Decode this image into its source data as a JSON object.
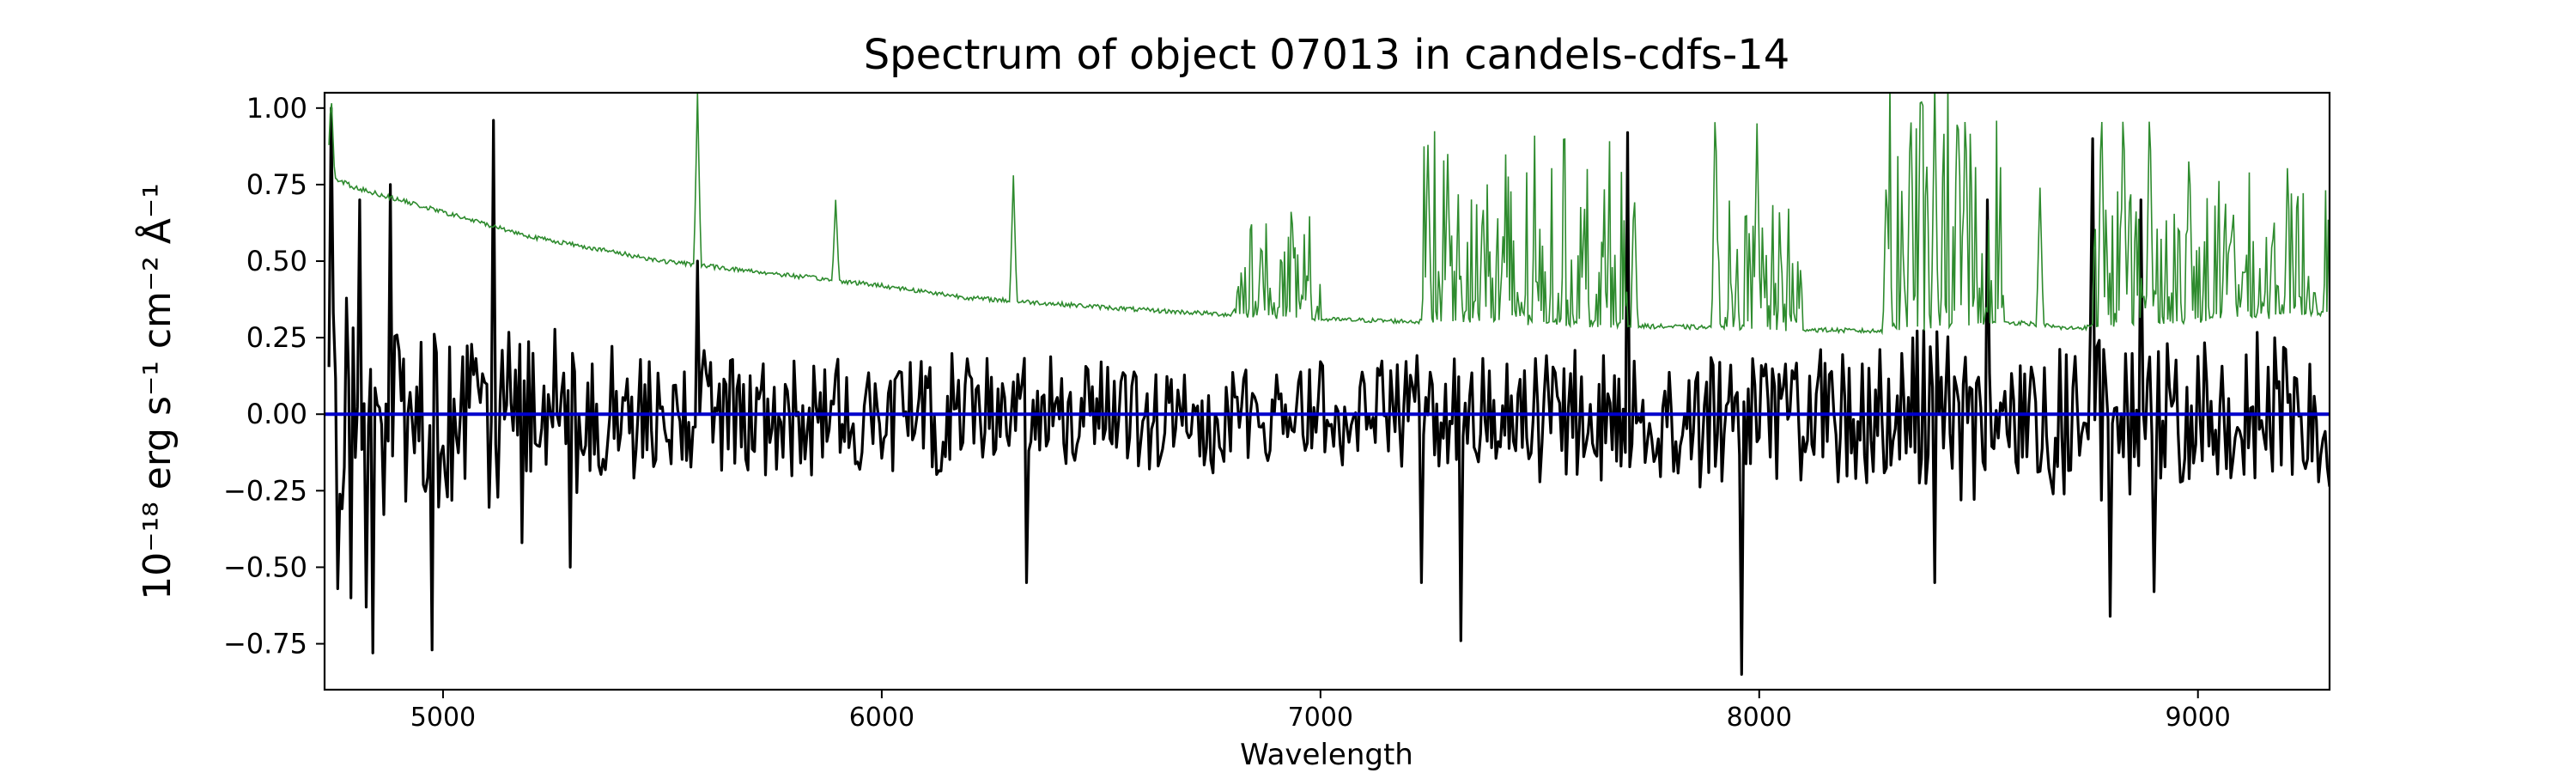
{
  "chart_data": {
    "type": "line",
    "title": "Spectrum of object 07013 in candels-cdfs-14",
    "xlabel": "Wavelength",
    "ylabel": "10⁻¹⁸ erg s⁻¹ cm⁻² Å⁻¹",
    "xlim": [
      4730,
      9300
    ],
    "ylim": [
      -0.9,
      1.05
    ],
    "x_ticks": [
      5000,
      6000,
      7000,
      8000,
      9000
    ],
    "y_ticks": [
      -0.75,
      -0.5,
      -0.25,
      0.0,
      0.25,
      0.5,
      0.75,
      1.0
    ],
    "y_tick_labels": [
      "−0.75",
      "−0.50",
      "−0.25",
      "0.00",
      "0.25",
      "0.50",
      "0.75",
      "1.00"
    ],
    "grid": false,
    "colors": {
      "flux": "#000000",
      "error": "#2e8b2e",
      "zero": "#0000cc"
    },
    "series": [
      {
        "key": "flux",
        "style": "noisy",
        "x_start": 4740,
        "x_end": 9300,
        "step": 5,
        "spikes": [
          [
            4745,
            1.0
          ],
          [
            4760,
            -0.57
          ],
          [
            4790,
            -0.6
          ],
          [
            4810,
            0.7
          ],
          [
            4825,
            -0.63
          ],
          [
            4840,
            -0.78
          ],
          [
            4880,
            0.75
          ],
          [
            4975,
            -0.77
          ],
          [
            5115,
            0.96
          ],
          [
            5180,
            -0.42
          ],
          [
            5290,
            -0.5
          ],
          [
            5580,
            0.5
          ],
          [
            6330,
            -0.55
          ],
          [
            7230,
            -0.55
          ],
          [
            7320,
            -0.74
          ],
          [
            7700,
            0.92
          ],
          [
            7960,
            -0.85
          ],
          [
            8400,
            -0.55
          ],
          [
            8520,
            0.7
          ],
          [
            8800,
            -0.66
          ],
          [
            8760,
            0.9
          ],
          [
            8870,
            0.7
          ],
          [
            8900,
            -0.58
          ]
        ],
        "amplitude_points": [
          [
            4740,
            0.32
          ],
          [
            5500,
            0.2
          ],
          [
            6500,
            0.15
          ],
          [
            7300,
            0.18
          ],
          [
            8000,
            0.2
          ],
          [
            8500,
            0.25
          ],
          [
            9300,
            0.22
          ]
        ]
      },
      {
        "key": "error",
        "style": "envelope",
        "baseline_points": [
          [
            4740,
            0.78
          ],
          [
            4800,
            0.74
          ],
          [
            5000,
            0.66
          ],
          [
            5200,
            0.58
          ],
          [
            5500,
            0.5
          ],
          [
            6000,
            0.42
          ],
          [
            6200,
            0.38
          ],
          [
            6600,
            0.34
          ],
          [
            7000,
            0.31
          ],
          [
            7300,
            0.3
          ],
          [
            8000,
            0.28
          ],
          [
            8300,
            0.27
          ],
          [
            8500,
            0.29
          ],
          [
            8600,
            0.3
          ],
          [
            8700,
            0.28
          ],
          [
            9300,
            0.33
          ]
        ],
        "peaks": [
          [
            4745,
            1.05
          ],
          [
            5580,
            1.05
          ],
          [
            5895,
            0.7
          ],
          [
            6300,
            0.78
          ],
          [
            6865,
            0.57
          ],
          [
            7245,
            0.88
          ],
          [
            7290,
            0.85
          ],
          [
            7370,
            0.72
          ],
          [
            7600,
            0.6
          ],
          [
            7715,
            0.75
          ],
          [
            7900,
            1.05
          ],
          [
            7995,
            0.95
          ],
          [
            8290,
            0.8
          ],
          [
            8345,
            1.05
          ],
          [
            8400,
            1.05
          ],
          [
            8470,
            1.05
          ],
          [
            8640,
            0.74
          ],
          [
            8780,
            1.05
          ],
          [
            8830,
            1.05
          ],
          [
            8890,
            1.05
          ],
          [
            8980,
            0.9
          ],
          [
            9080,
            0.7
          ]
        ],
        "forest_regions": [
          [
            6800,
            7000,
            0.25
          ],
          [
            7230,
            7700,
            0.45
          ],
          [
            7900,
            8100,
            0.3
          ],
          [
            8290,
            8560,
            0.6
          ],
          [
            8760,
            9300,
            0.35
          ]
        ]
      },
      {
        "key": "zero",
        "style": "flat",
        "value": 0.0
      }
    ]
  }
}
